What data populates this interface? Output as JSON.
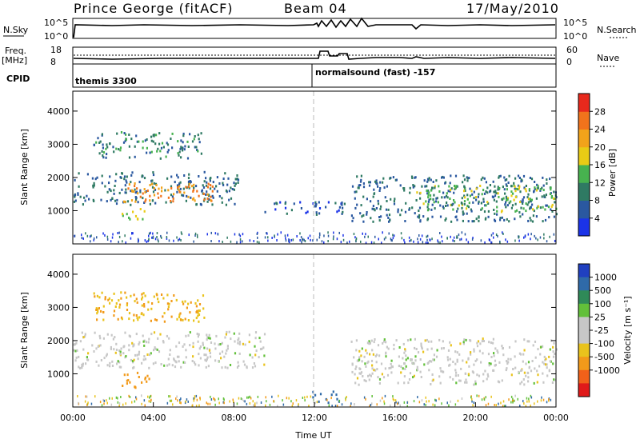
{
  "header": {
    "site": "Prince George (fitACF)",
    "beam": "Beam 04",
    "date": "17/May/2010"
  },
  "top_panels": {
    "nsky_label": "N.Sky",
    "nsky_ticks": [
      "10^5",
      "10^0"
    ],
    "nsearch_label": "N.Search",
    "freq_label_1": "Freq.",
    "freq_label_2": "[MHz]",
    "freq_ticks": [
      "18",
      "8"
    ],
    "nave_ticks": [
      "60",
      "0"
    ],
    "nave_label": "Nave",
    "cpid_label": "CPID",
    "cpid_segments": [
      "themis 3300",
      "normalsound (fast) -157"
    ]
  },
  "colors": {
    "power": [
      "#1b33e8",
      "#2a58a0",
      "#2f7a63",
      "#47b24f",
      "#e9cb15",
      "#f2a31a",
      "#f1731c",
      "#e8291c"
    ],
    "velocity": [
      "#2040c0",
      "#2f6aa8",
      "#2f8a58",
      "#62c03a",
      "#c7c7c7",
      "#c7c7c7",
      "#e9c31c",
      "#f29a1a",
      "#f1611a",
      "#e01a1a"
    ]
  },
  "chart_data": [
    {
      "type": "heatmap",
      "title": "Power",
      "xlabel": "",
      "ylabel": "Slant Range [km]",
      "xlim": [
        "00:00",
        "24:00"
      ],
      "ylim": [
        0,
        4600
      ],
      "y_ticks": [
        "1000",
        "2000",
        "3000",
        "4000"
      ],
      "colorbar_label": "Power [dB]",
      "colorbar_ticks": [
        "4",
        "8",
        "12",
        "16",
        "20",
        "24",
        "28"
      ],
      "colorbar_range": [
        0,
        32
      ],
      "features": [
        {
          "time_start": 0.0,
          "time_end": 8.2,
          "range_start": 1200,
          "range_end": 2200,
          "value": 8
        },
        {
          "time_start": 2.5,
          "time_end": 7.2,
          "range_start": 1300,
          "range_end": 1900,
          "value": 24
        },
        {
          "time_start": 2.4,
          "time_end": 3.6,
          "range_start": 700,
          "range_end": 1100,
          "value": 16
        },
        {
          "time_start": 1.0,
          "time_end": 6.5,
          "range_start": 2600,
          "range_end": 3400,
          "value": 10
        },
        {
          "time_start": 13.8,
          "time_end": 24.0,
          "range_start": 700,
          "range_end": 2100,
          "value": 8
        },
        {
          "time_start": 17.0,
          "time_end": 24.0,
          "range_start": 1000,
          "range_end": 1800,
          "value": 14
        },
        {
          "time_start": 9.5,
          "time_end": 13.5,
          "range_start": 900,
          "range_end": 1300,
          "value": 6
        }
      ]
    },
    {
      "type": "heatmap",
      "title": "Velocity",
      "xlabel": "Time UT",
      "ylabel": "Slant Range [km]",
      "xlim": [
        "00:00",
        "24:00"
      ],
      "ylim": [
        0,
        4600
      ],
      "y_ticks": [
        "1000",
        "2000",
        "3000",
        "4000"
      ],
      "x_ticks": [
        "00:00",
        "04:00",
        "08:00",
        "12:00",
        "16:00",
        "20:00",
        "00:00"
      ],
      "colorbar_label": "Velocity [m s⁻¹]",
      "colorbar_ticks": [
        "1000",
        "500",
        "100",
        "25",
        "-25",
        "-100",
        "-500",
        "-1000"
      ],
      "features": [
        {
          "time_start": 0.0,
          "time_end": 9.5,
          "range_start": 1200,
          "range_end": 2300,
          "value": 0
        },
        {
          "time_start": 2.4,
          "time_end": 3.8,
          "range_start": 600,
          "range_end": 1100,
          "value": -400
        },
        {
          "time_start": 1.0,
          "time_end": 6.5,
          "range_start": 2600,
          "range_end": 3500,
          "value": -100
        },
        {
          "time_start": 13.8,
          "time_end": 24.0,
          "range_start": 700,
          "range_end": 2100,
          "value": 0
        },
        {
          "time_start": 11.8,
          "time_end": 13.2,
          "range_start": 150,
          "range_end": 500,
          "value": 150
        }
      ]
    }
  ]
}
